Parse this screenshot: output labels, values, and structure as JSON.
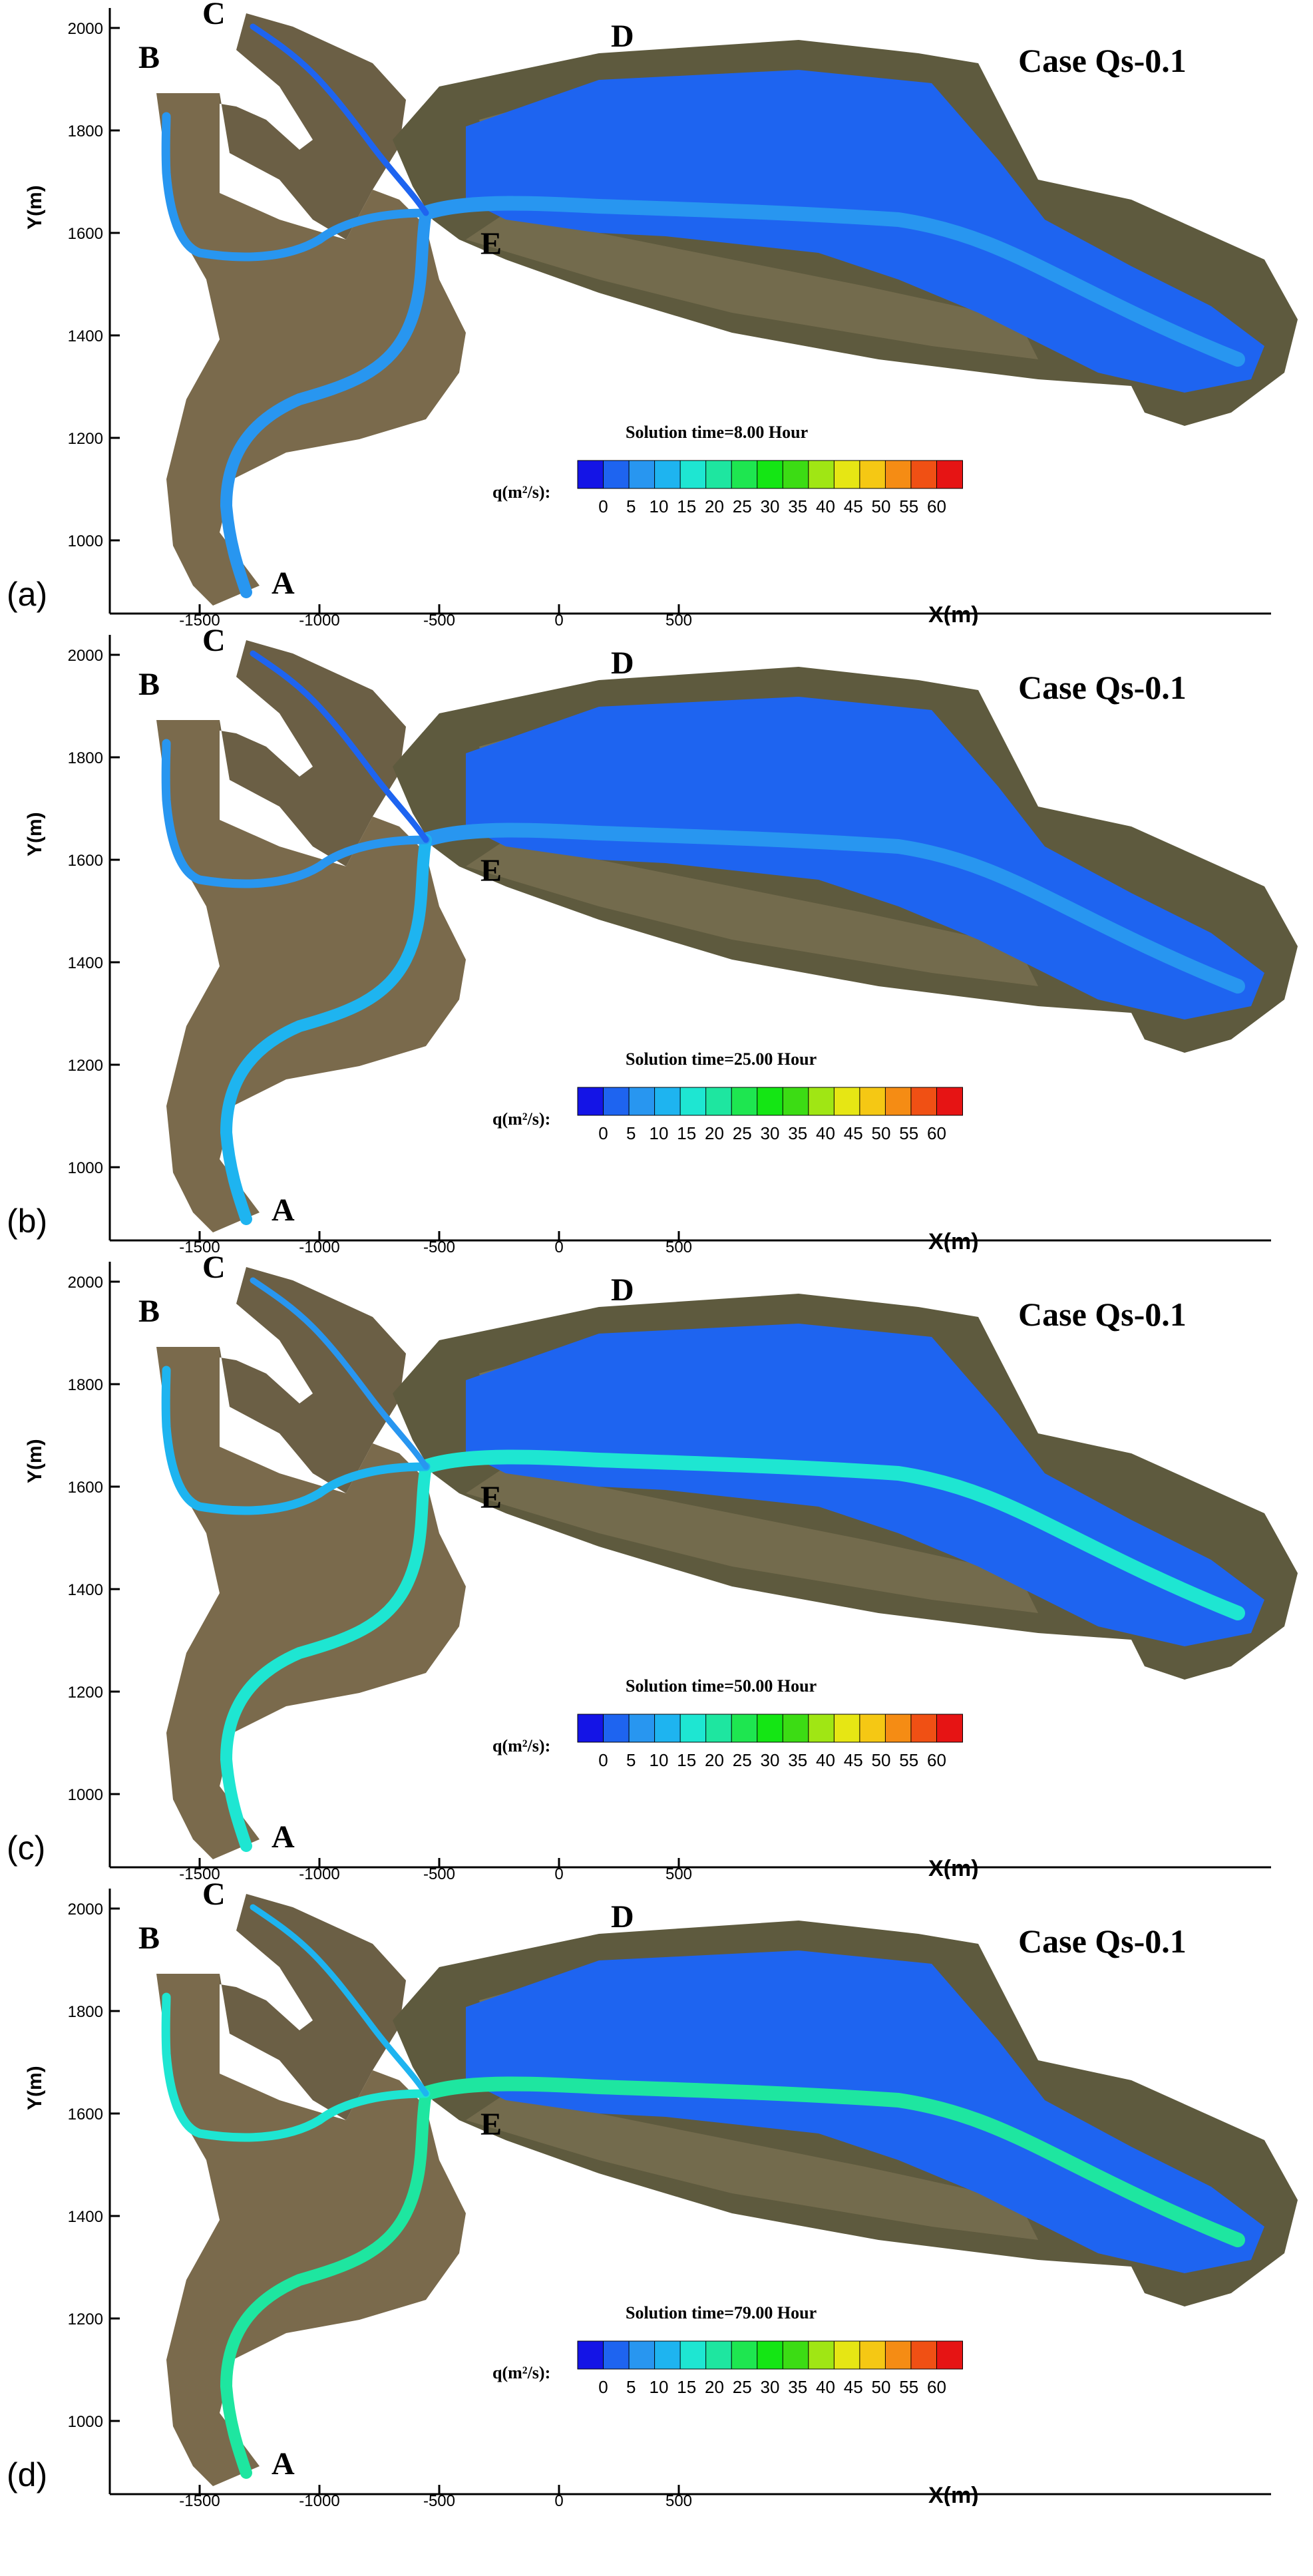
{
  "figure": {
    "axis_x_label": "X(m)",
    "axis_y_label": "Y(m)",
    "x_ticks": [
      "-1500",
      "-1000",
      "-500",
      "0",
      "500"
    ],
    "y_ticks": [
      "1000",
      "1200",
      "1400",
      "1600",
      "1800",
      "2000"
    ],
    "legend": {
      "label": "q(m²/s):",
      "ticks": [
        "0",
        "5",
        "10",
        "15",
        "20",
        "25",
        "30",
        "35",
        "40",
        "45",
        "50",
        "55",
        "60"
      ],
      "colors": [
        "#1414e6",
        "#1e64f0",
        "#2896f0",
        "#1eb4f0",
        "#1ee6d2",
        "#1ee6a0",
        "#1ee650",
        "#14e614",
        "#3cdc14",
        "#a0e614",
        "#e6e614",
        "#f5c814",
        "#f58c14",
        "#f05014",
        "#e61414"
      ]
    },
    "site_labels": {
      "A": "A",
      "B": "B",
      "C": "C",
      "D": "D",
      "E": "E"
    },
    "case_label": "Case Qs-0.1"
  },
  "panels": [
    {
      "tag": "(a)",
      "solution_time": "Solution time=8.00 Hour",
      "intensity": 0
    },
    {
      "tag": "(b)",
      "solution_time": "Solution time=25.00 Hour",
      "intensity": 3
    },
    {
      "tag": "(c)",
      "solution_time": "Solution time=50.00 Hour",
      "intensity": 2
    },
    {
      "tag": "(d)",
      "solution_time": "Solution time=79.00 Hour",
      "intensity": 1
    }
  ]
}
